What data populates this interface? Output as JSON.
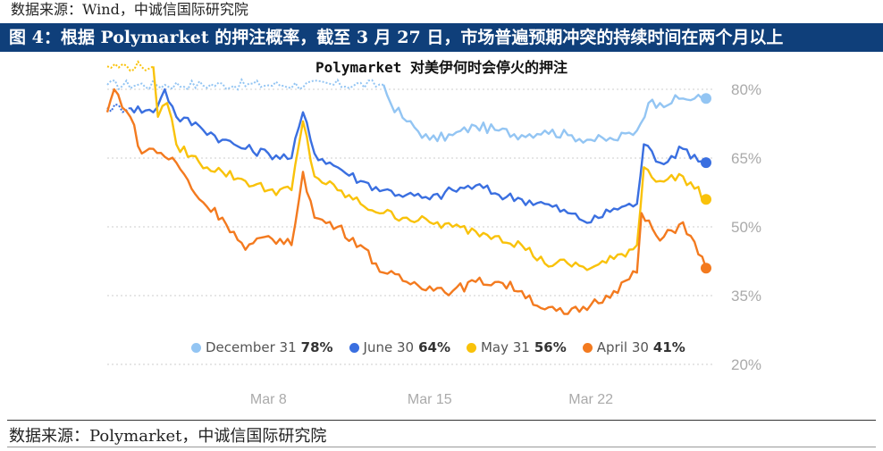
{
  "header": {
    "top_source": "数据来源：Wind，中诚信国际研究院",
    "figure_title": "图 4：根据 Polymarket 的押注概率，截至 3 月 27 日，市场普遍预期冲突的持续时间在两个月以上"
  },
  "footer": {
    "source": "数据来源：Polymarket，中诚信国际研究院"
  },
  "colors": {
    "figure_bar": "#0f3f7a",
    "grid": "#cccccc",
    "tick_text": "#aaaaaa"
  },
  "chart_data": {
    "type": "line",
    "title": "Polymarket 对美伊何时会停火的押注",
    "xlabel": "",
    "ylabel": "",
    "ylim": [
      20,
      80
    ],
    "yticks": [
      80,
      65,
      50,
      35,
      20
    ],
    "ytick_labels": [
      "80%",
      "65%",
      "50%",
      "35%",
      "20%"
    ],
    "xlim": [
      "2026-03-01",
      "2026-03-27"
    ],
    "xticks": [
      "2026-03-08",
      "2026-03-15",
      "2026-03-22"
    ],
    "xtick_labels": [
      "Mar 8",
      "Mar 15",
      "Mar 22"
    ],
    "grid": true,
    "legend_position": "bottom",
    "series": [
      {
        "name": "December 31",
        "label_value": "78%",
        "color": "#93c5f3",
        "dashed_until": "2026-03-13",
        "points": [
          [
            "2026-03-01",
            81
          ],
          [
            "2026-03-13",
            81
          ],
          [
            "2026-03-13.3",
            77
          ],
          [
            "2026-03-14",
            73
          ],
          [
            "2026-03-15",
            69
          ],
          [
            "2026-03-16",
            70
          ],
          [
            "2026-03-17",
            72
          ],
          [
            "2026-03-18",
            71
          ],
          [
            "2026-03-19",
            70
          ],
          [
            "2026-03-20",
            71
          ],
          [
            "2026-03-21",
            70
          ],
          [
            "2026-03-22",
            69
          ],
          [
            "2026-03-23",
            69
          ],
          [
            "2026-03-24",
            71
          ],
          [
            "2026-03-24.5",
            77
          ],
          [
            "2026-03-25",
            77
          ],
          [
            "2026-03-26",
            78
          ],
          [
            "2026-03-27",
            78
          ]
        ]
      },
      {
        "name": "June 30",
        "label_value": "64%",
        "color": "#3a6fe0",
        "dashed_until": "2026-03-02",
        "points": [
          [
            "2026-03-01",
            76
          ],
          [
            "2026-03-02",
            76
          ],
          [
            "2026-03-03",
            75
          ],
          [
            "2026-03-03.5",
            80
          ],
          [
            "2026-03-04",
            74
          ],
          [
            "2026-03-05",
            72
          ],
          [
            "2026-03-06",
            69
          ],
          [
            "2026-03-07",
            67
          ],
          [
            "2026-03-08",
            66
          ],
          [
            "2026-03-09",
            65
          ],
          [
            "2026-03-09.5",
            75
          ],
          [
            "2026-03-10",
            66
          ],
          [
            "2026-03-11",
            63
          ],
          [
            "2026-03-12",
            60
          ],
          [
            "2026-03-13",
            58
          ],
          [
            "2026-03-14",
            57
          ],
          [
            "2026-03-15",
            56
          ],
          [
            "2026-03-16",
            58
          ],
          [
            "2026-03-17",
            59
          ],
          [
            "2026-03-18",
            57
          ],
          [
            "2026-03-19",
            56
          ],
          [
            "2026-03-20",
            55
          ],
          [
            "2026-03-21",
            53
          ],
          [
            "2026-03-22",
            51
          ],
          [
            "2026-03-23",
            54
          ],
          [
            "2026-03-24",
            55
          ],
          [
            "2026-03-24.3",
            68
          ],
          [
            "2026-03-25",
            64
          ],
          [
            "2026-03-26",
            67
          ],
          [
            "2026-03-27",
            64
          ]
        ]
      },
      {
        "name": "May 31",
        "label_value": "56%",
        "color": "#f9c20a",
        "dashed_until": "2026-03-03",
        "points": [
          [
            "2026-03-01",
            85
          ],
          [
            "2026-03-03",
            85
          ],
          [
            "2026-03-03.2",
            74
          ],
          [
            "2026-03-03.6",
            77
          ],
          [
            "2026-03-04",
            68
          ],
          [
            "2026-03-05",
            64
          ],
          [
            "2026-03-06",
            62
          ],
          [
            "2026-03-07",
            60
          ],
          [
            "2026-03-08",
            58
          ],
          [
            "2026-03-09",
            58
          ],
          [
            "2026-03-09.5",
            73
          ],
          [
            "2026-03-10",
            61
          ],
          [
            "2026-03-11",
            58
          ],
          [
            "2026-03-12",
            55
          ],
          [
            "2026-03-13",
            53
          ],
          [
            "2026-03-14",
            52
          ],
          [
            "2026-03-15",
            51
          ],
          [
            "2026-03-16",
            50
          ],
          [
            "2026-03-17",
            49
          ],
          [
            "2026-03-18",
            48
          ],
          [
            "2026-03-19",
            46
          ],
          [
            "2026-03-20",
            42
          ],
          [
            "2026-03-21",
            42
          ],
          [
            "2026-03-22",
            41
          ],
          [
            "2026-03-23",
            43
          ],
          [
            "2026-03-24",
            46
          ],
          [
            "2026-03-24.3",
            63
          ],
          [
            "2026-03-25",
            60
          ],
          [
            "2026-03-26",
            61
          ],
          [
            "2026-03-27",
            56
          ]
        ]
      },
      {
        "name": "April 30",
        "label_value": "41%",
        "color": "#f37a1f",
        "dashed_until": "2026-03-01",
        "points": [
          [
            "2026-03-01",
            75
          ],
          [
            "2026-03-01.3",
            80
          ],
          [
            "2026-03-02",
            74
          ],
          [
            "2026-03-02.5",
            66
          ],
          [
            "2026-03-03",
            67
          ],
          [
            "2026-03-04",
            64
          ],
          [
            "2026-03-05",
            56
          ],
          [
            "2026-03-06",
            52
          ],
          [
            "2026-03-07",
            45
          ],
          [
            "2026-03-08",
            48
          ],
          [
            "2026-03-09",
            46
          ],
          [
            "2026-03-09.5",
            62
          ],
          [
            "2026-03-10",
            52
          ],
          [
            "2026-03-11",
            50
          ],
          [
            "2026-03-12",
            46
          ],
          [
            "2026-03-13",
            40
          ],
          [
            "2026-03-14",
            38
          ],
          [
            "2026-03-15",
            37
          ],
          [
            "2026-03-16",
            36
          ],
          [
            "2026-03-17",
            38
          ],
          [
            "2026-03-18",
            38
          ],
          [
            "2026-03-19",
            36
          ],
          [
            "2026-03-20",
            32
          ],
          [
            "2026-03-21",
            31
          ],
          [
            "2026-03-22",
            33
          ],
          [
            "2026-03-23",
            36
          ],
          [
            "2026-03-24",
            40
          ],
          [
            "2026-03-24.2",
            53
          ],
          [
            "2026-03-25",
            47
          ],
          [
            "2026-03-26",
            51
          ],
          [
            "2026-03-27",
            41
          ]
        ]
      }
    ]
  }
}
